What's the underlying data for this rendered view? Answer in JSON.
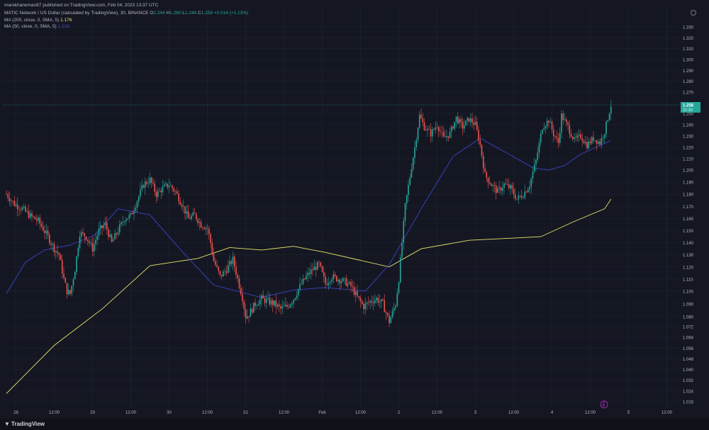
{
  "header": {
    "publisher": "marekhaneman87 published on TradingView.com, Feb 04, 2023 13:37 UTC",
    "symbol_line": "MATIC Network / US Dollar (calculated by TradingView), 30, BINANCE",
    "ohlc": {
      "o_label": "O",
      "o": "1.244",
      "h_label": "H",
      "h": "1.260",
      "l_label": "L",
      "l": "1.244",
      "c_label": "C",
      "c": "1.258",
      "chg": "+0.014 (+1.13%)"
    },
    "ma200": {
      "label": "MA (200, close, 0, SMA, 5)",
      "value": "1.176"
    },
    "ma50": {
      "label": "MA (50, close, 0, SMA, 5)",
      "value": "1.226"
    }
  },
  "footer": {
    "brand": "TradingView"
  },
  "colors": {
    "bg": "#141722",
    "up": "#26a69a",
    "down": "#ef5350",
    "ma200": "#e8e36a",
    "ma50": "#3b44c9",
    "grid": "#1f2330",
    "text": "#b2b5be"
  },
  "chart_data": {
    "type": "candlestick",
    "grid": true,
    "y_ticks": [
      1.016,
      1.024,
      1.032,
      1.04,
      1.048,
      1.056,
      1.064,
      1.072,
      1.08,
      1.09,
      1.1,
      1.11,
      1.12,
      1.13,
      1.14,
      1.15,
      1.16,
      1.17,
      1.18,
      1.19,
      1.2,
      1.21,
      1.22,
      1.23,
      1.24,
      1.25,
      1.27,
      1.28,
      1.29,
      1.3,
      1.31,
      1.32,
      1.33
    ],
    "y_tick_labels": [
      "1.016",
      "1.024",
      "1.032",
      "1.040",
      "1.048",
      "1.056",
      "1.064",
      "1.072",
      "1.080",
      "1.090",
      "1.100",
      "1.110",
      "1.120",
      "1.130",
      "1.140",
      "1.150",
      "1.160",
      "1.170",
      "1.180",
      "1.190",
      "1.200",
      "1.210",
      "1.220",
      "1.230",
      "1.240",
      "1.250",
      "1.270",
      "1.280",
      "1.290",
      "1.300",
      "1.310",
      "1.320",
      "1.330"
    ],
    "x_tick_labels": [
      "28",
      "12:00",
      "29",
      "12:00",
      "30",
      "12:00",
      "31",
      "12:00",
      "Feb",
      "12:00",
      "2",
      "12:00",
      "3",
      "12:00",
      "4",
      "12:00",
      "5",
      "12:00"
    ],
    "x_tick_bars": [
      6,
      30,
      54,
      78,
      102,
      126,
      150,
      174,
      198,
      222,
      246,
      270,
      294,
      318,
      342,
      366,
      390,
      414
    ],
    "last_price": {
      "value": 1.258,
      "label": "1.258",
      "countdown": "22:39"
    },
    "ma200": [
      [
        0,
        1.022
      ],
      [
        30,
        1.058
      ],
      [
        60,
        1.086
      ],
      [
        90,
        1.121
      ],
      [
        120,
        1.127
      ],
      [
        140,
        1.136
      ],
      [
        160,
        1.134
      ],
      [
        180,
        1.137
      ],
      [
        200,
        1.132
      ],
      [
        220,
        1.126
      ],
      [
        240,
        1.12
      ],
      [
        260,
        1.135
      ],
      [
        290,
        1.142
      ],
      [
        320,
        1.144
      ],
      [
        335,
        1.145
      ],
      [
        355,
        1.157
      ],
      [
        375,
        1.168
      ],
      [
        379,
        1.176
      ]
    ],
    "ma50": [
      [
        0,
        1.098
      ],
      [
        12,
        1.124
      ],
      [
        24,
        1.134
      ],
      [
        40,
        1.138
      ],
      [
        55,
        1.146
      ],
      [
        70,
        1.168
      ],
      [
        90,
        1.163
      ],
      [
        110,
        1.133
      ],
      [
        130,
        1.105
      ],
      [
        160,
        1.095
      ],
      [
        180,
        1.101
      ],
      [
        200,
        1.103
      ],
      [
        225,
        1.1
      ],
      [
        240,
        1.122
      ],
      [
        260,
        1.168
      ],
      [
        280,
        1.212
      ],
      [
        297,
        1.228
      ],
      [
        315,
        1.214
      ],
      [
        330,
        1.202
      ],
      [
        340,
        1.2
      ],
      [
        350,
        1.204
      ],
      [
        360,
        1.214
      ],
      [
        379,
        1.226
      ]
    ],
    "price_path": [
      [
        0,
        1.18
      ],
      [
        5,
        1.172
      ],
      [
        10,
        1.168
      ],
      [
        15,
        1.162
      ],
      [
        20,
        1.158
      ],
      [
        26,
        1.145
      ],
      [
        30,
        1.135
      ],
      [
        33,
        1.13
      ],
      [
        36,
        1.11
      ],
      [
        38,
        1.1
      ],
      [
        40,
        1.098
      ],
      [
        43,
        1.118
      ],
      [
        46,
        1.148
      ],
      [
        50,
        1.145
      ],
      [
        54,
        1.135
      ],
      [
        58,
        1.15
      ],
      [
        62,
        1.155
      ],
      [
        66,
        1.14
      ],
      [
        70,
        1.15
      ],
      [
        74,
        1.16
      ],
      [
        78,
        1.162
      ],
      [
        82,
        1.175
      ],
      [
        86,
        1.188
      ],
      [
        90,
        1.192
      ],
      [
        94,
        1.18
      ],
      [
        98,
        1.185
      ],
      [
        102,
        1.188
      ],
      [
        106,
        1.182
      ],
      [
        110,
        1.172
      ],
      [
        114,
        1.16
      ],
      [
        118,
        1.163
      ],
      [
        122,
        1.155
      ],
      [
        126,
        1.152
      ],
      [
        128,
        1.14
      ],
      [
        130,
        1.125
      ],
      [
        134,
        1.112
      ],
      [
        138,
        1.118
      ],
      [
        142,
        1.126
      ],
      [
        145,
        1.11
      ],
      [
        148,
        1.095
      ],
      [
        150,
        1.08
      ],
      [
        152,
        1.082
      ],
      [
        156,
        1.09
      ],
      [
        160,
        1.094
      ],
      [
        164,
        1.092
      ],
      [
        168,
        1.09
      ],
      [
        172,
        1.086
      ],
      [
        176,
        1.088
      ],
      [
        180,
        1.094
      ],
      [
        184,
        1.104
      ],
      [
        188,
        1.112
      ],
      [
        192,
        1.118
      ],
      [
        196,
        1.122
      ],
      [
        200,
        1.106
      ],
      [
        204,
        1.112
      ],
      [
        208,
        1.11
      ],
      [
        212,
        1.108
      ],
      [
        216,
        1.104
      ],
      [
        220,
        1.095
      ],
      [
        224,
        1.088
      ],
      [
        228,
        1.092
      ],
      [
        232,
        1.094
      ],
      [
        236,
        1.09
      ],
      [
        240,
        1.076
      ],
      [
        244,
        1.09
      ],
      [
        246,
        1.11
      ],
      [
        248,
        1.14
      ],
      [
        250,
        1.17
      ],
      [
        253,
        1.195
      ],
      [
        256,
        1.22
      ],
      [
        259,
        1.248
      ],
      [
        262,
        1.238
      ],
      [
        266,
        1.232
      ],
      [
        270,
        1.24
      ],
      [
        274,
        1.228
      ],
      [
        278,
        1.232
      ],
      [
        282,
        1.246
      ],
      [
        286,
        1.238
      ],
      [
        290,
        1.245
      ],
      [
        294,
        1.24
      ],
      [
        297,
        1.222
      ],
      [
        300,
        1.196
      ],
      [
        304,
        1.188
      ],
      [
        308,
        1.182
      ],
      [
        312,
        1.188
      ],
      [
        316,
        1.185
      ],
      [
        320,
        1.176
      ],
      [
        324,
        1.18
      ],
      [
        328,
        1.188
      ],
      [
        332,
        1.208
      ],
      [
        336,
        1.238
      ],
      [
        340,
        1.244
      ],
      [
        343,
        1.232
      ],
      [
        346,
        1.224
      ],
      [
        348,
        1.248
      ],
      [
        352,
        1.238
      ],
      [
        356,
        1.226
      ],
      [
        360,
        1.23
      ],
      [
        364,
        1.222
      ],
      [
        368,
        1.228
      ],
      [
        372,
        1.224
      ],
      [
        375,
        1.234
      ],
      [
        377,
        1.246
      ],
      [
        379,
        1.258
      ]
    ]
  }
}
